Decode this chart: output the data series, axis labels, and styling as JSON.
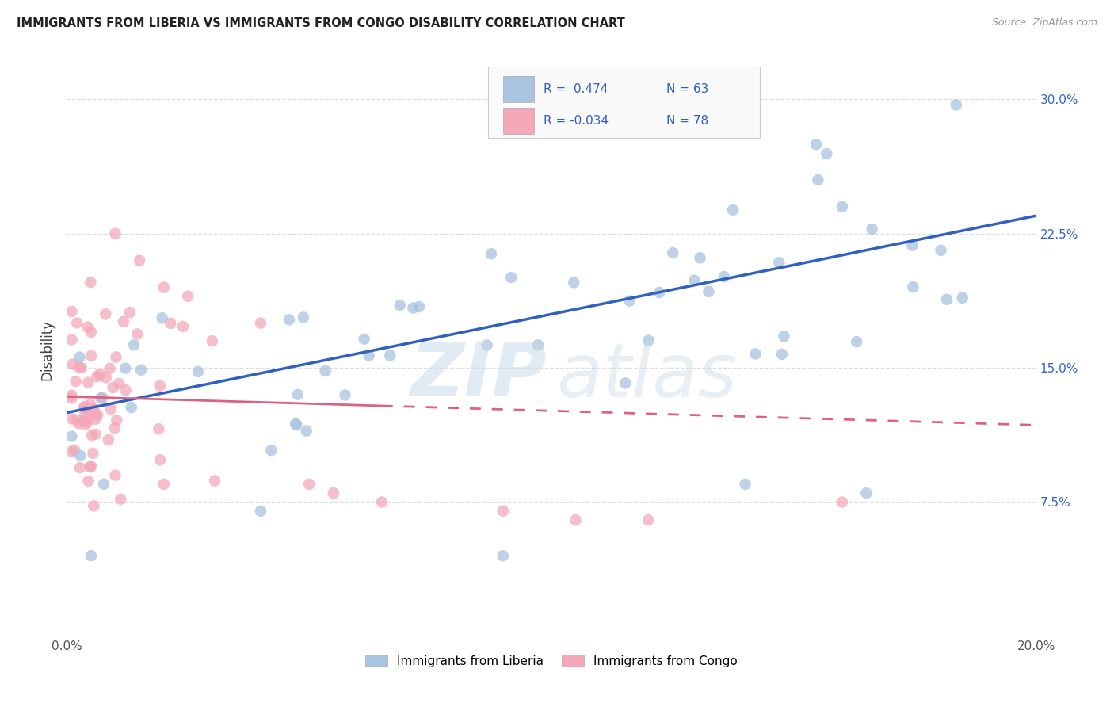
{
  "title": "IMMIGRANTS FROM LIBERIA VS IMMIGRANTS FROM CONGO DISABILITY CORRELATION CHART",
  "source": "Source: ZipAtlas.com",
  "ylabel": "Disability",
  "legend_label1": "Immigrants from Liberia",
  "legend_label2": "Immigrants from Congo",
  "R1": 0.474,
  "N1": 63,
  "R2": -0.034,
  "N2": 78,
  "color1": "#a8c4e0",
  "color2": "#f4a7b9",
  "line_color1": "#3060c0",
  "line_color2": "#e06080",
  "xmin": 0.0,
  "xmax": 0.2,
  "ymin": 0.0,
  "ymax": 0.32,
  "yticks": [
    0.0,
    0.075,
    0.15,
    0.225,
    0.3
  ],
  "ytick_labels": [
    "",
    "7.5%",
    "15.0%",
    "22.5%",
    "30.0%"
  ],
  "xticks": [
    0.0,
    0.05,
    0.1,
    0.15,
    0.2
  ],
  "xtick_labels": [
    "0.0%",
    "",
    "",
    "",
    "20.0%"
  ],
  "watermark_zip": "ZIP",
  "watermark_atlas": "atlas",
  "background_color": "#ffffff",
  "grid_color": "#dddddd",
  "blue_line_y0": 0.125,
  "blue_line_y1": 0.235,
  "pink_line_y0": 0.134,
  "pink_line_y1": 0.118
}
